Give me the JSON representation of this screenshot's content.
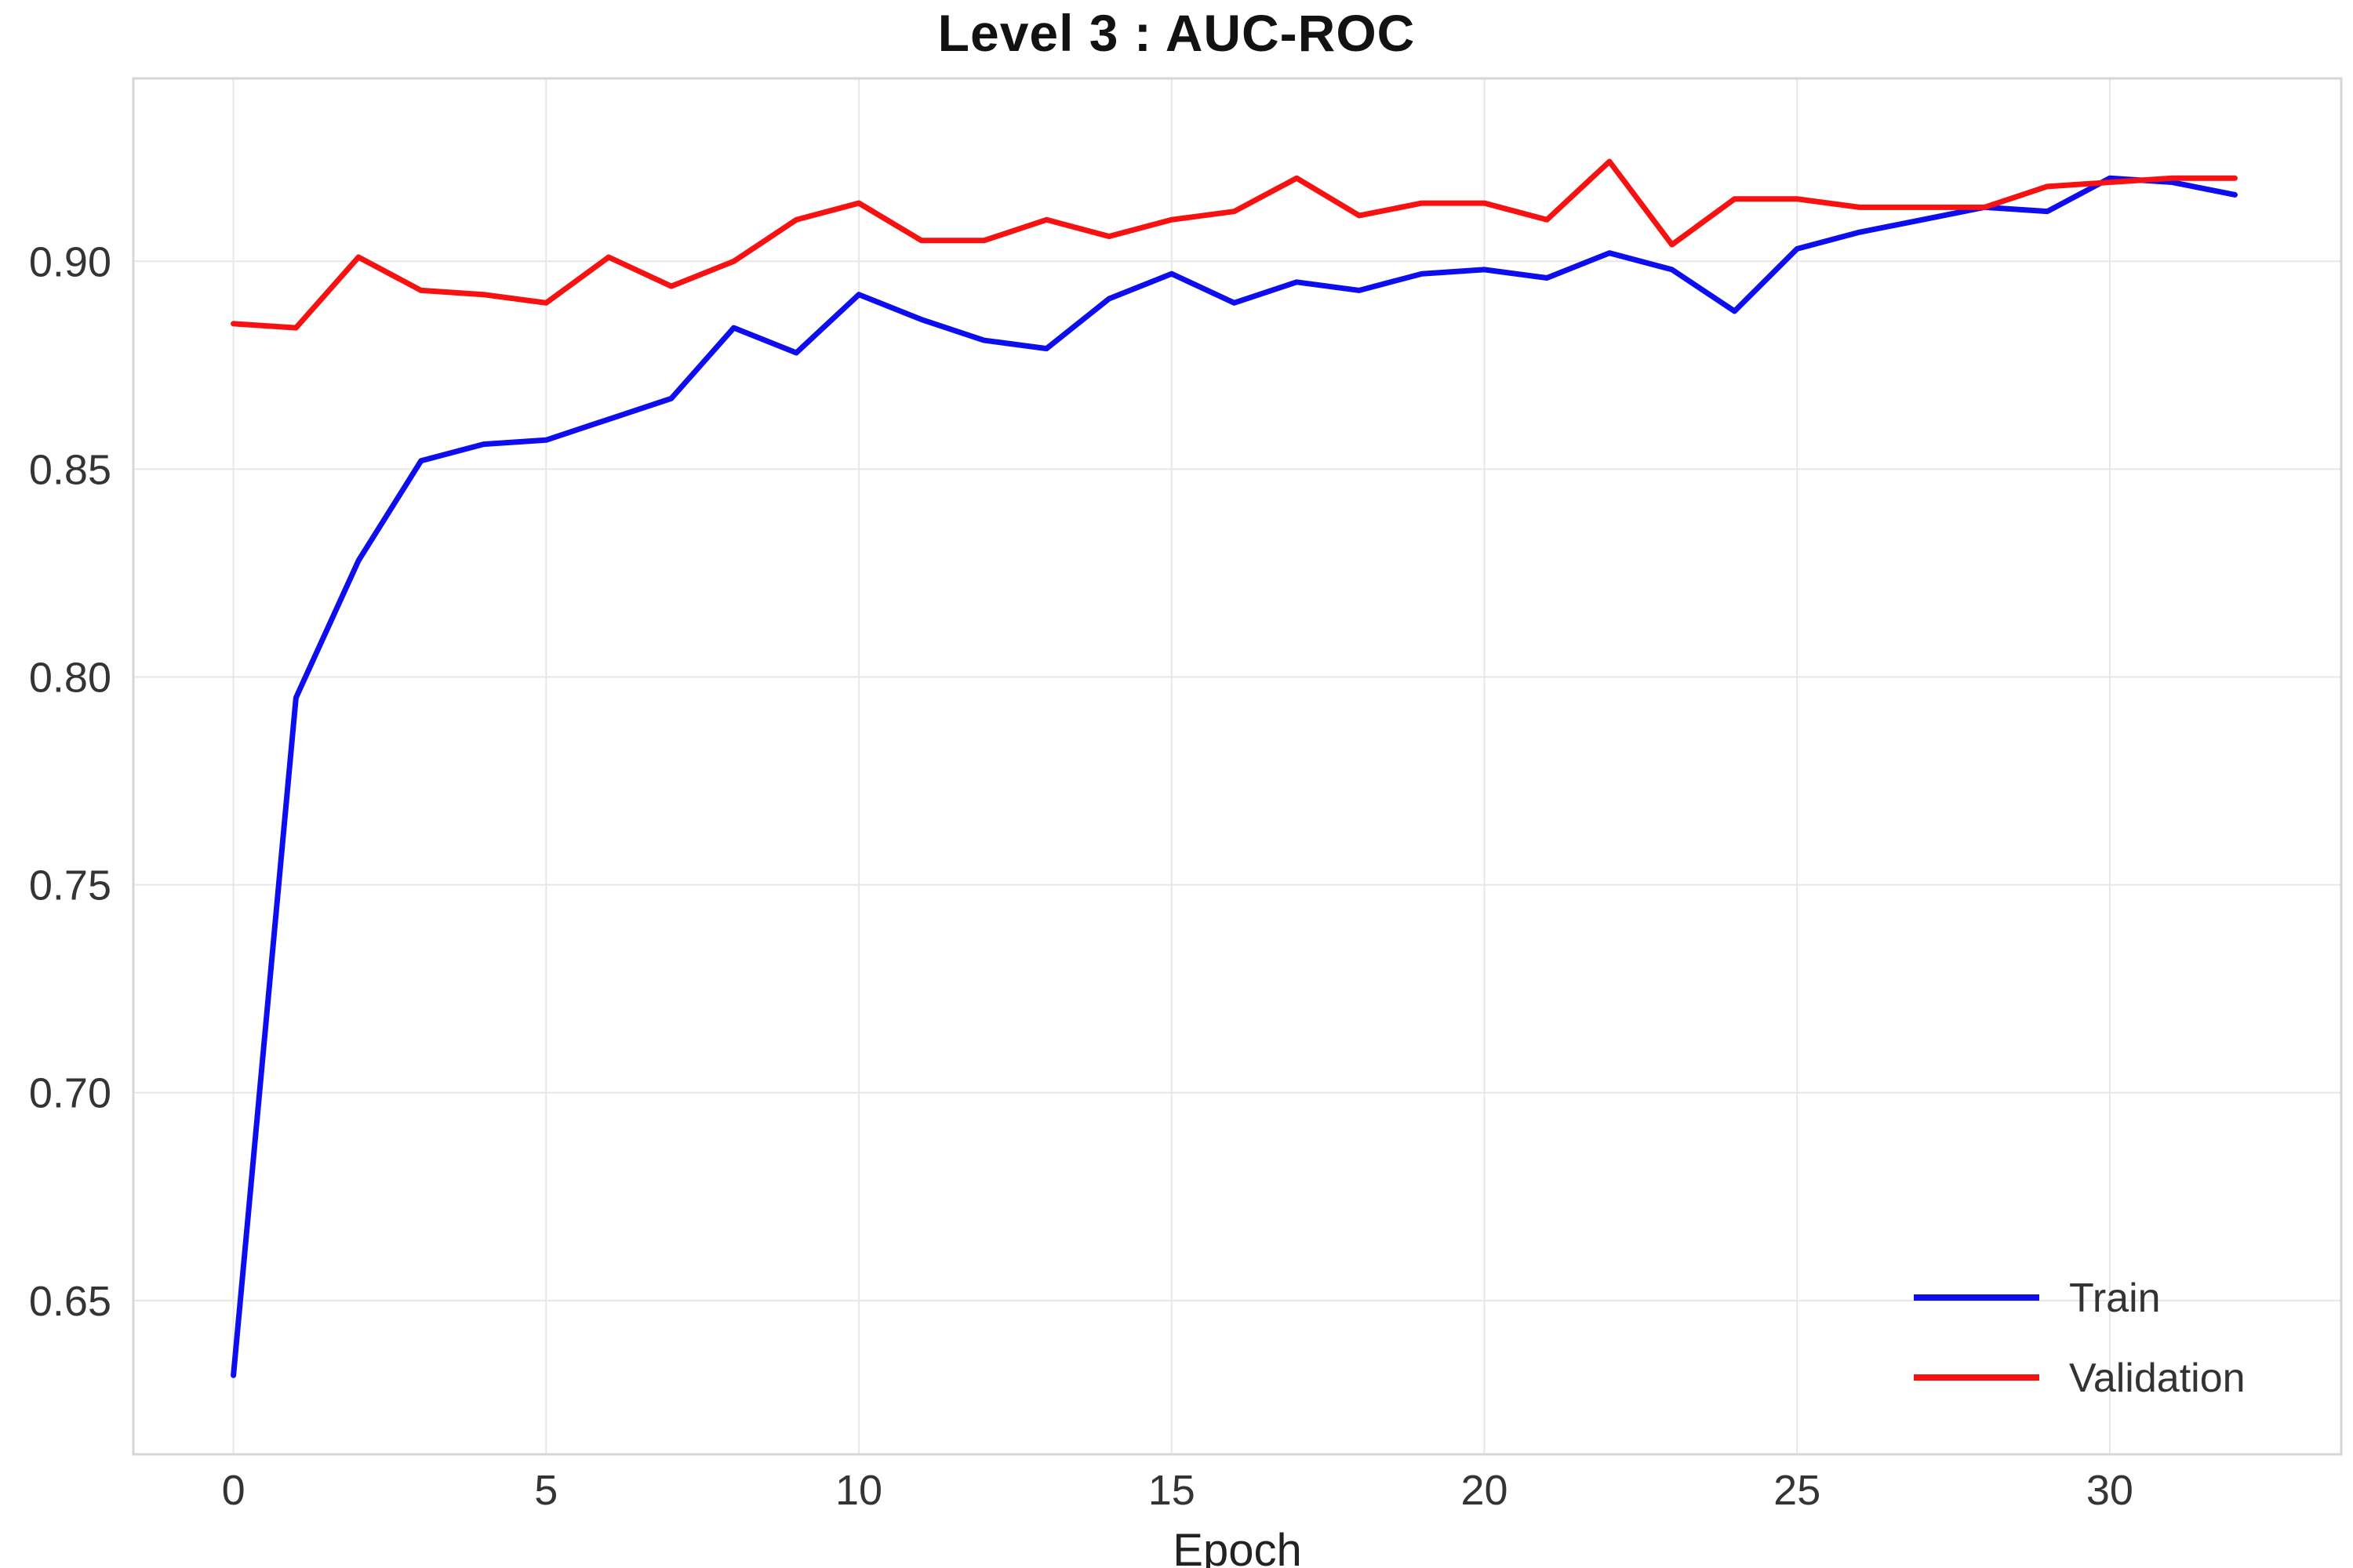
{
  "chart_data": {
    "type": "line",
    "title": "Level 3 : AUC-ROC",
    "xlabel": "Epoch",
    "ylabel": "",
    "x": [
      0,
      1,
      2,
      3,
      4,
      5,
      6,
      7,
      8,
      9,
      10,
      11,
      12,
      13,
      14,
      15,
      16,
      17,
      18,
      19,
      20,
      21,
      22,
      23,
      24,
      25,
      26,
      27,
      28,
      29,
      30,
      31,
      32
    ],
    "series": [
      {
        "name": "Train",
        "color": "#0d0df0",
        "values": [
          0.632,
          0.795,
          0.828,
          0.852,
          0.856,
          0.857,
          0.862,
          0.867,
          0.884,
          0.878,
          0.892,
          0.886,
          0.881,
          0.879,
          0.891,
          0.897,
          0.89,
          0.895,
          0.893,
          0.897,
          0.898,
          0.896,
          0.902,
          0.898,
          0.888,
          0.903,
          0.907,
          0.91,
          0.913,
          0.912,
          0.92,
          0.919,
          0.916
        ]
      },
      {
        "name": "Validation",
        "color": "#f71111",
        "values": [
          0.885,
          0.884,
          0.901,
          0.893,
          0.892,
          0.89,
          0.901,
          0.894,
          0.9,
          0.91,
          0.914,
          0.905,
          0.905,
          0.91,
          0.906,
          0.91,
          0.912,
          0.92,
          0.911,
          0.914,
          0.914,
          0.91,
          0.924,
          0.904,
          0.915,
          0.915,
          0.913,
          0.913,
          0.913,
          0.918,
          0.919,
          0.92,
          0.92
        ]
      }
    ],
    "xlim": [
      -1.6,
      33.7
    ],
    "ylim": [
      0.613,
      0.944
    ],
    "xticks": [
      0,
      5,
      10,
      15,
      20,
      25,
      30
    ],
    "yticks": [
      0.65,
      0.7,
      0.75,
      0.8,
      0.85,
      0.9
    ],
    "grid": true,
    "legend_position": "lower right",
    "colors": {
      "grid": "#e7e7e7",
      "frame": "#d6d6d6",
      "background": "#ffffff"
    }
  }
}
